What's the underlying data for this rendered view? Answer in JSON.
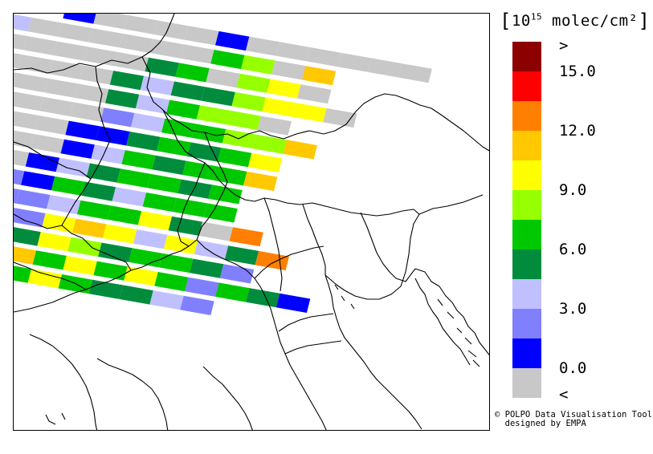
{
  "legend": {
    "unit_exp": "15",
    "unit_rest": " molec/cm²",
    "colors": [
      "#c8c8c8",
      "#0000ff",
      "#8080ff",
      "#c0c0ff",
      "#008c3c",
      "#00c800",
      "#96ff00",
      "#ffff00",
      "#ffc800",
      "#ff8000",
      "#ff0000",
      "#8c0000"
    ],
    "labels": [
      {
        "text": ">",
        "at": 12
      },
      {
        "text": "15.0",
        "at": 11
      },
      {
        "text": "12.0",
        "at": 9
      },
      {
        "text": "9.0",
        "at": 7
      },
      {
        "text": "6.0",
        "at": 5
      },
      {
        "text": "3.0",
        "at": 3
      },
      {
        "text": "0.0",
        "at": 1
      },
      {
        "text": "<",
        "at": 0
      }
    ]
  },
  "credit": {
    "line1": "© POLPO Data Visualisation Tool",
    "line2": "  designed by EMPA"
  },
  "swaths": [
    {
      "a0": 2,
      "codes": "1GGGG1GGGGGG"
    },
    {
      "a0": 0,
      "codes": "3GGGGGG56G8"
    },
    {
      "a0": -1,
      "codes": "5GGGGG45G67G"
    },
    {
      "a0": -2,
      "codes": "1GGGGG4344677G"
    },
    {
      "a0": -2,
      "codes": "1GGGGG43566G"
    },
    {
      "a0": -2,
      "codes": "GGGGGG2355668"
    },
    {
      "a0": -3,
      "codes": "G1GGGG1145457"
    },
    {
      "a0": -3,
      "codes": "11GGGG1354558"
    },
    {
      "a0": -3,
      "codes": "21GGG1345545"
    },
    {
      "a0": -3,
      "codes": "11GG21543555"
    },
    {
      "a0": -3,
      "codes": "11GG2235574G9"
    },
    {
      "a0": -2,
      "codes": "1GG22Y8737349"
    },
    {
      "a0": -2,
      "codes": "G1114Y645542"
    },
    {
      "a0": -1,
      "codes": "21185Y5752541"
    },
    {
      "a0": -1,
      "codes": "5Y65754432"
    }
  ]
}
